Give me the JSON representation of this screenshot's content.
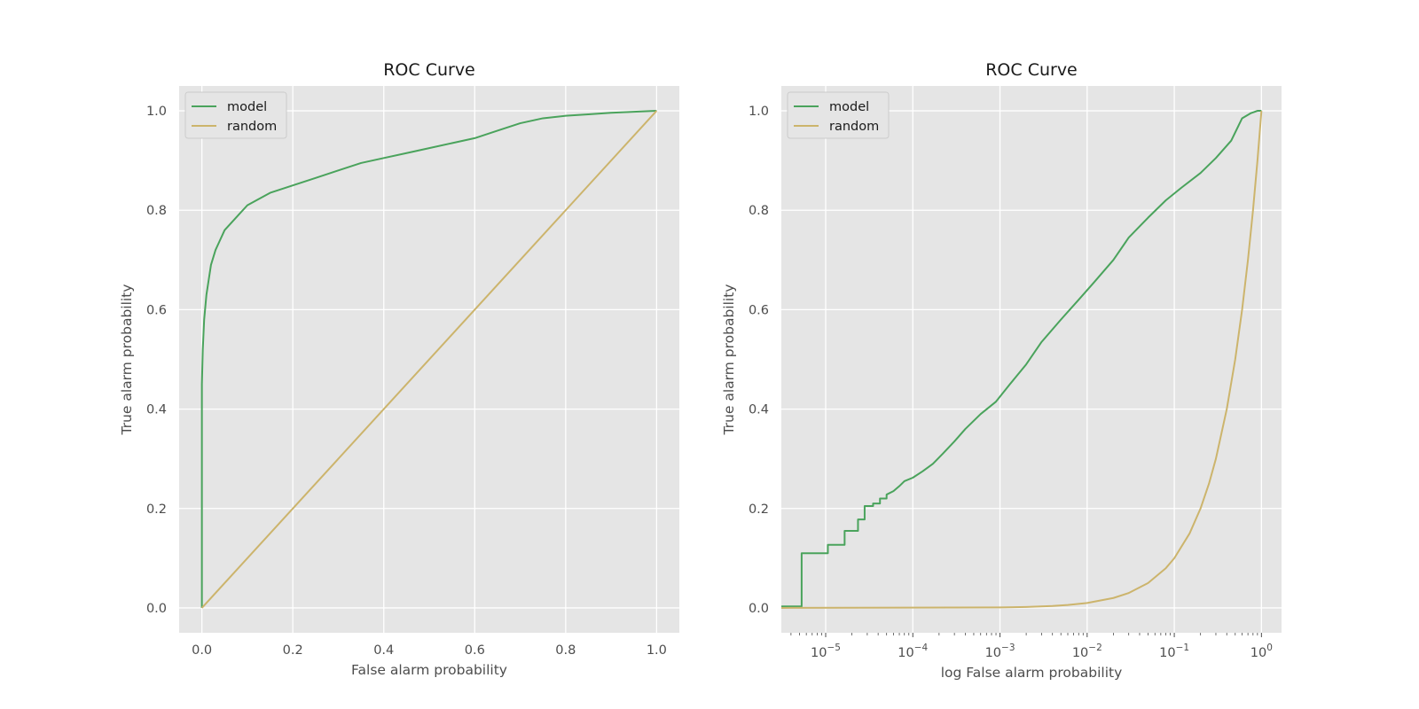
{
  "colors": {
    "plot_bg": "#e5e5e5",
    "grid": "#ffffff",
    "model": "#4aa35c",
    "random": "#ccb46c",
    "text": "#4d4d4d"
  },
  "chart_data": [
    {
      "type": "line",
      "title": "ROC Curve",
      "xlabel": "False alarm probability",
      "ylabel": "True alarm probability",
      "xscale": "linear",
      "xlim": [
        -0.05,
        1.05
      ],
      "ylim": [
        -0.05,
        1.05
      ],
      "xticks": [
        0.0,
        0.2,
        0.4,
        0.6,
        0.8,
        1.0
      ],
      "xtick_labels": [
        "0.0",
        "0.2",
        "0.4",
        "0.6",
        "0.8",
        "1.0"
      ],
      "yticks": [
        0.0,
        0.2,
        0.4,
        0.6,
        0.8,
        1.0
      ],
      "ytick_labels": [
        "0.0",
        "0.2",
        "0.4",
        "0.6",
        "0.8",
        "1.0"
      ],
      "grid": true,
      "legend": "top-left",
      "series": [
        {
          "name": "model",
          "color": "#4aa35c",
          "x": [
            0.0,
            0.0,
            0.002,
            0.005,
            0.01,
            0.015,
            0.02,
            0.03,
            0.04,
            0.05,
            0.06,
            0.07,
            0.08,
            0.1,
            0.12,
            0.15,
            0.2,
            0.25,
            0.3,
            0.35,
            0.4,
            0.45,
            0.5,
            0.55,
            0.6,
            0.65,
            0.7,
            0.75,
            0.8,
            0.85,
            0.9,
            0.95,
            1.0
          ],
          "y": [
            0.0,
            0.45,
            0.52,
            0.58,
            0.63,
            0.66,
            0.69,
            0.72,
            0.74,
            0.76,
            0.77,
            0.78,
            0.79,
            0.81,
            0.82,
            0.835,
            0.85,
            0.865,
            0.88,
            0.895,
            0.905,
            0.915,
            0.925,
            0.935,
            0.945,
            0.96,
            0.975,
            0.985,
            0.99,
            0.993,
            0.996,
            0.998,
            1.0
          ]
        },
        {
          "name": "random",
          "color": "#ccb46c",
          "x": [
            0.0,
            1.0
          ],
          "y": [
            0.0,
            1.0
          ]
        }
      ]
    },
    {
      "type": "line",
      "title": "ROC Curve",
      "xlabel": "log False alarm probability",
      "ylabel": "True alarm probability",
      "xscale": "log",
      "xlim": [
        3.1e-06,
        1.7
      ],
      "ylim": [
        -0.05,
        1.05
      ],
      "xticks": [
        1e-05,
        0.0001,
        0.001,
        0.01,
        0.1,
        1
      ],
      "xtick_labels": [
        {
          "base": "10",
          "exp": "−5"
        },
        {
          "base": "10",
          "exp": "−4"
        },
        {
          "base": "10",
          "exp": "−3"
        },
        {
          "base": "10",
          "exp": "−2"
        },
        {
          "base": "10",
          "exp": "−1"
        },
        {
          "base": "10",
          "exp": "0"
        }
      ],
      "yticks": [
        0.0,
        0.2,
        0.4,
        0.6,
        0.8,
        1.0
      ],
      "ytick_labels": [
        "0.0",
        "0.2",
        "0.4",
        "0.6",
        "0.8",
        "1.0"
      ],
      "grid": true,
      "legend": "top-left",
      "series": [
        {
          "name": "model",
          "color": "#4aa35c",
          "x": [
            3e-06,
            5.3e-06,
            5.3e-06,
            1.06e-05,
            1.06e-05,
            1.65e-05,
            1.65e-05,
            2.35e-05,
            2.35e-05,
            2.8e-05,
            2.8e-05,
            3.5e-05,
            3.5e-05,
            4.2e-05,
            4.2e-05,
            5e-05,
            5e-05,
            6e-05,
            7e-05,
            8e-05,
            0.0001,
            0.00013,
            0.00017,
            0.00022,
            0.0003,
            0.0004,
            0.0006,
            0.0009,
            0.0013,
            0.002,
            0.003,
            0.005,
            0.008,
            0.012,
            0.02,
            0.03,
            0.05,
            0.08,
            0.12,
            0.2,
            0.3,
            0.45,
            0.6,
            0.75,
            0.9,
            1.0
          ],
          "y": [
            0.003,
            0.003,
            0.11,
            0.11,
            0.127,
            0.127,
            0.155,
            0.155,
            0.178,
            0.178,
            0.205,
            0.205,
            0.21,
            0.21,
            0.22,
            0.22,
            0.228,
            0.235,
            0.245,
            0.255,
            0.262,
            0.275,
            0.29,
            0.31,
            0.335,
            0.36,
            0.39,
            0.415,
            0.45,
            0.49,
            0.535,
            0.58,
            0.62,
            0.655,
            0.7,
            0.745,
            0.785,
            0.82,
            0.845,
            0.875,
            0.905,
            0.94,
            0.985,
            0.995,
            1.0,
            1.0
          ]
        },
        {
          "name": "random",
          "color": "#ccb46c",
          "x": [
            3e-06,
            0.001,
            0.002,
            0.004,
            0.006,
            0.01,
            0.02,
            0.03,
            0.05,
            0.08,
            0.1,
            0.15,
            0.2,
            0.25,
            0.3,
            0.4,
            0.5,
            0.6,
            0.7,
            0.8,
            0.9,
            1.0
          ],
          "y": [
            3e-06,
            0.001,
            0.002,
            0.004,
            0.006,
            0.01,
            0.02,
            0.03,
            0.05,
            0.08,
            0.1,
            0.15,
            0.2,
            0.25,
            0.3,
            0.4,
            0.5,
            0.6,
            0.7,
            0.8,
            0.9,
            1.0
          ]
        }
      ]
    }
  ]
}
